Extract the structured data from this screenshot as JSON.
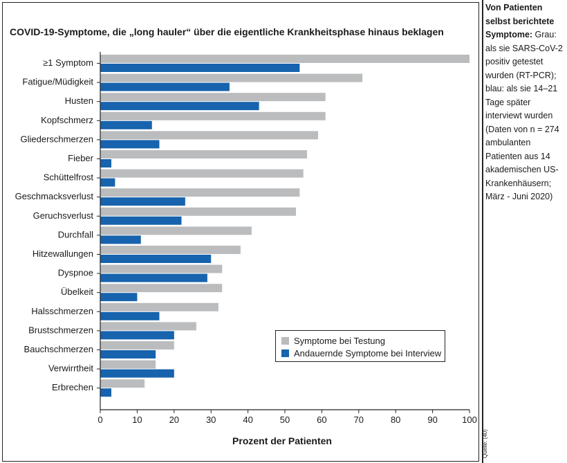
{
  "title": "COVID-19-Symptome, die „long hauler“ über die eigentliche Krankheitsphase hinaus beklagen",
  "side_note": {
    "bold": "Von Patienten selbst berichtete Symptome:",
    "text": " Grau: als sie SARS-CoV-2 positiv getestet wurden (RT-PCR); blau: als sie 14–21 Tage später interviewt wurden (Daten von n = 274 ambulanten Patienten aus 14 akademischen US-Krankenhäusern; März - Juni 2020)"
  },
  "source": "Quelle: (40)",
  "colors": {
    "gray": "#bbbcbe",
    "blue": "#1763ad",
    "axis": "#222222"
  },
  "chart_data": {
    "type": "bar",
    "orientation": "horizontal",
    "title": "COVID-19-Symptome, die „long hauler“ über die eigentliche Krankheitsphase hinaus beklagen",
    "xlabel": "Prozent der Patienten",
    "ylabel": "",
    "xlim": [
      0,
      100
    ],
    "xticks": [
      0,
      10,
      20,
      30,
      40,
      50,
      60,
      70,
      80,
      90,
      100
    ],
    "grid": false,
    "legend_position": "bottom-right",
    "categories": [
      "≥1 Symptom",
      "Fatigue/Müdigkeit",
      "Husten",
      "Kopfschmerz",
      "Gliederschmerzen",
      "Fieber",
      "Schüttelfrost",
      "Geschmacksverlust",
      "Geruchsverlust",
      "Durchfall",
      "Hitzewallungen",
      "Dyspnoe",
      "Übelkeit",
      "Halsschmerzen",
      "Brustschmerzen",
      "Bauchschmerzen",
      "Verwirrtheit",
      "Erbrechen"
    ],
    "series": [
      {
        "name": "Symptome bei Testung",
        "color": "#bbbcbe",
        "values": [
          100,
          71,
          61,
          61,
          59,
          56,
          55,
          54,
          53,
          41,
          38,
          33,
          33,
          32,
          26,
          20,
          15,
          12
        ]
      },
      {
        "name": "Andauernde Symptome bei Interview",
        "color": "#1763ad",
        "values": [
          54,
          35,
          43,
          14,
          16,
          3,
          4,
          23,
          22,
          11,
          30,
          29,
          10,
          16,
          20,
          15,
          20,
          3
        ]
      }
    ]
  }
}
